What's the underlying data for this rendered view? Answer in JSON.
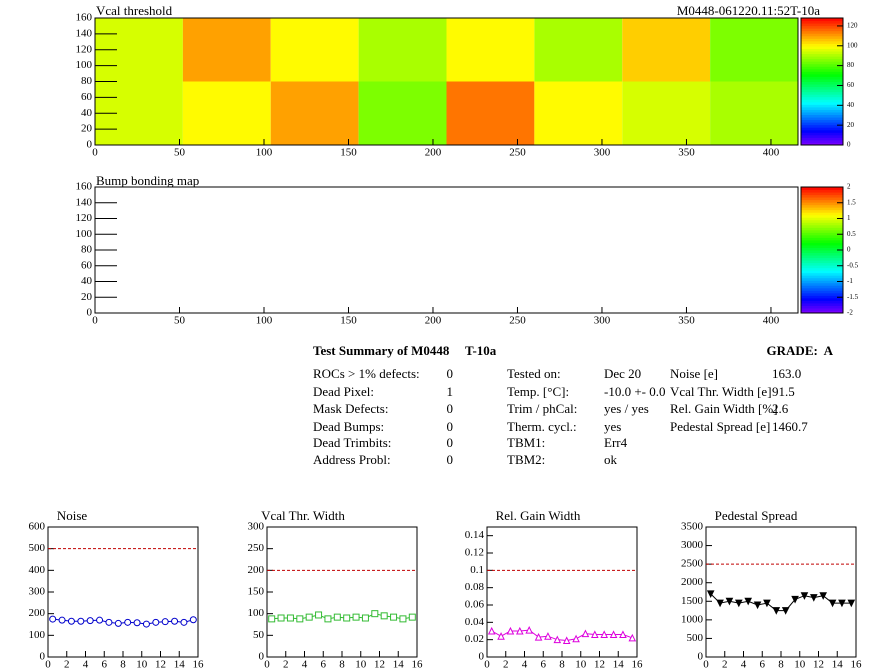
{
  "header": {
    "module": "M0448-061220.11:52T-10a"
  },
  "chart_data": [
    {
      "type": "heatmap",
      "title": "Vcal threshold",
      "xbins": [
        0,
        52,
        104,
        156,
        208,
        260,
        312,
        364,
        416
      ],
      "ybins": [
        0,
        80,
        160
      ],
      "values": [
        [
          95,
          100,
          110,
          85,
          115,
          100,
          95,
          90
        ],
        [
          95,
          110,
          100,
          90,
          100,
          90,
          105,
          85
        ]
      ],
      "xlim": [
        0,
        416
      ],
      "xticks": [
        0,
        50,
        100,
        150,
        200,
        250,
        300,
        350,
        400
      ],
      "ylim": [
        0,
        160
      ],
      "yticks": [
        0,
        20,
        40,
        60,
        80,
        100,
        120,
        140,
        160
      ],
      "zlim": [
        0,
        128
      ],
      "zticks": [
        0,
        20,
        40,
        60,
        80,
        100,
        120
      ]
    },
    {
      "type": "heatmap",
      "title": "Bump bonding map",
      "xlim": [
        0,
        416
      ],
      "xticks": [
        0,
        50,
        100,
        150,
        200,
        250,
        300,
        350,
        400
      ],
      "ylim": [
        0,
        160
      ],
      "yticks": [
        0,
        20,
        40,
        60,
        80,
        100,
        120,
        140,
        160
      ],
      "zlim": [
        -2,
        2
      ],
      "zticks": [
        -2,
        -1.5,
        -1,
        -0.5,
        0,
        0.5,
        1,
        1.5,
        2
      ]
    },
    {
      "type": "line",
      "title": "Noise",
      "color": "#0000cc",
      "marker": "circle-open",
      "x": [
        0.5,
        1.5,
        2.5,
        3.5,
        4.5,
        5.5,
        6.5,
        7.5,
        8.5,
        9.5,
        10.5,
        11.5,
        12.5,
        13.5,
        14.5,
        15.5
      ],
      "values": [
        175,
        170,
        165,
        165,
        168,
        170,
        160,
        155,
        160,
        158,
        152,
        160,
        163,
        165,
        160,
        172
      ],
      "xlim": [
        0,
        16
      ],
      "xticks": [
        0,
        2,
        4,
        6,
        8,
        10,
        12,
        14,
        16
      ],
      "ylim": [
        0,
        600
      ],
      "yticks": [
        0,
        100,
        200,
        300,
        400,
        500,
        600
      ],
      "threshold": 500,
      "threshold_color": "#c00000"
    },
    {
      "type": "line",
      "title": "Vcal Thr. Width",
      "color": "#33bb33",
      "marker": "square-open",
      "x": [
        0.5,
        1.5,
        2.5,
        3.5,
        4.5,
        5.5,
        6.5,
        7.5,
        8.5,
        9.5,
        10.5,
        11.5,
        12.5,
        13.5,
        14.5,
        15.5
      ],
      "values": [
        88,
        90,
        90,
        88,
        92,
        97,
        88,
        92,
        90,
        92,
        90,
        100,
        95,
        92,
        88,
        92
      ],
      "xlim": [
        0,
        16
      ],
      "xticks": [
        0,
        2,
        4,
        6,
        8,
        10,
        12,
        14,
        16
      ],
      "ylim": [
        0,
        300
      ],
      "yticks": [
        0,
        50,
        100,
        150,
        200,
        250,
        300
      ],
      "threshold": 200,
      "threshold_color": "#c00000"
    },
    {
      "type": "line",
      "title": "Rel. Gain Width",
      "color": "#dd00dd",
      "marker": "triangle-open",
      "x": [
        0.5,
        1.5,
        2.5,
        3.5,
        4.5,
        5.5,
        6.5,
        7.5,
        8.5,
        9.5,
        10.5,
        11.5,
        12.5,
        13.5,
        14.5,
        15.5
      ],
      "values": [
        0.03,
        0.024,
        0.03,
        0.03,
        0.031,
        0.023,
        0.024,
        0.02,
        0.019,
        0.021,
        0.027,
        0.026,
        0.026,
        0.026,
        0.026,
        0.022
      ],
      "xlim": [
        0,
        16
      ],
      "xticks": [
        0,
        2,
        4,
        6,
        8,
        10,
        12,
        14,
        16
      ],
      "ylim": [
        0,
        0.15
      ],
      "yticks": [
        0,
        0.02,
        0.04,
        0.06,
        0.08,
        0.1,
        0.12,
        0.14
      ],
      "threshold": 0.1,
      "threshold_color": "#c00000"
    },
    {
      "type": "line",
      "title": "Pedestal Spread",
      "color": "#000000",
      "marker": "triangle-down-filled",
      "x": [
        0.5,
        1.5,
        2.5,
        3.5,
        4.5,
        5.5,
        6.5,
        7.5,
        8.5,
        9.5,
        10.5,
        11.5,
        12.5,
        13.5,
        14.5,
        15.5
      ],
      "values": [
        1700,
        1450,
        1500,
        1450,
        1500,
        1400,
        1450,
        1250,
        1250,
        1550,
        1650,
        1600,
        1650,
        1450,
        1450,
        1450
      ],
      "xlim": [
        0,
        16
      ],
      "xticks": [
        0,
        2,
        4,
        6,
        8,
        10,
        12,
        14,
        16
      ],
      "ylim": [
        0,
        3500
      ],
      "yticks": [
        0,
        500,
        1000,
        1500,
        2000,
        2500,
        3000,
        3500
      ],
      "threshold": 2500,
      "threshold_color": "#c00000"
    }
  ],
  "summary": {
    "title": "Test Summary of M0448",
    "tag": "T-10a",
    "grade": "GRADE:  A",
    "columns": [
      [
        {
          "label": "ROCs > 1% defects:",
          "value": "0"
        },
        {
          "label": "Dead Pixel:",
          "value": "1"
        },
        {
          "label": "Mask Defects:",
          "value": "0"
        },
        {
          "label": "Dead Bumps:",
          "value": "0"
        },
        {
          "label": "Dead Trimbits:",
          "value": "0"
        },
        {
          "label": "Address Probl:",
          "value": "0"
        }
      ],
      [
        {
          "label": "Tested on:",
          "value": "Dec 20"
        },
        {
          "label": "Temp. [°C]:",
          "value": "-10.0 +- 0.0"
        },
        {
          "label": "Trim / phCal:",
          "value": "yes / yes"
        },
        {
          "label": "Therm. cycl.:",
          "value": "yes"
        },
        {
          "label": "TBM1:",
          "value": "Err4"
        },
        {
          "label": "TBM2:",
          "value": "ok"
        }
      ],
      [
        {
          "label": "Noise [e]",
          "value": "163.0"
        },
        {
          "label": "Vcal Thr. Width [e]",
          "value": "91.5"
        },
        {
          "label": "Rel. Gain Width [%]",
          "value": "2.6"
        },
        {
          "label": "Pedestal Spread [e]",
          "value": "1460.7"
        }
      ]
    ]
  }
}
